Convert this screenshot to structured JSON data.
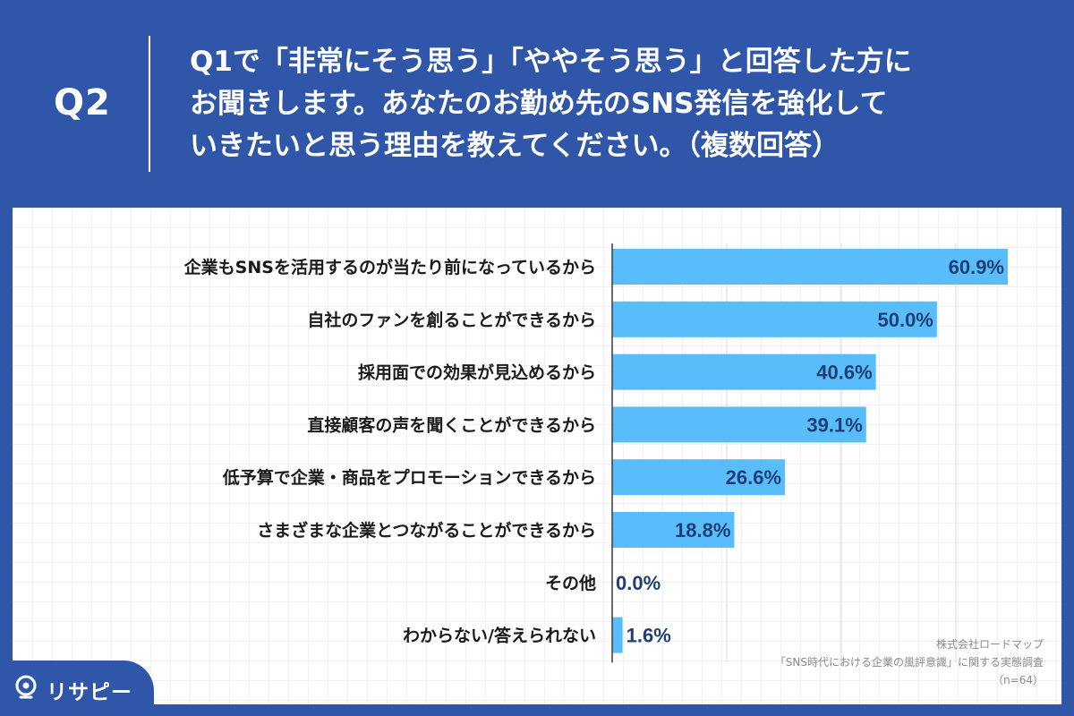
{
  "question": {
    "label": "Q2",
    "lines": [
      "Q1で「非常にそう思う」「ややそう思う」と回答した方に",
      "お聞きします。あなたのお勤め先のSNS発信を強化して",
      "いきたいと思う理由を教えてください。（複数回答）"
    ]
  },
  "chart_data": {
    "type": "bar",
    "orientation": "horizontal",
    "categories": [
      "企業もSNSを活用するのが当たり前になっているから",
      "自社のファンを創ることができるから",
      "採用面での効果が見込めるから",
      "直接顧客の声を聞くことができるから",
      "低予算で企業・商品をプロモーションできるから",
      "さまざまな企業とつながることができるから",
      "その他",
      "わからない/答えられない"
    ],
    "values": [
      60.9,
      50.0,
      40.6,
      39.1,
      26.6,
      18.8,
      0.0,
      1.6
    ],
    "value_labels": [
      "60.9%",
      "50.0%",
      "40.6%",
      "39.1%",
      "26.6%",
      "18.8%",
      "0.0%",
      "1.6%"
    ],
    "xlim": [
      0,
      60.9
    ],
    "grid": true,
    "bar_color": "#59bdfb",
    "label_color": "#1d3f73"
  },
  "footer": {
    "company": "株式会社ロードマップ",
    "survey": "「SNS時代における企業の風評意識」に関する実態調査",
    "sample": "（n=64）"
  },
  "brand": {
    "logo_text": "リサピー",
    "icon": "pin-icon",
    "background": "#2f56a8"
  }
}
